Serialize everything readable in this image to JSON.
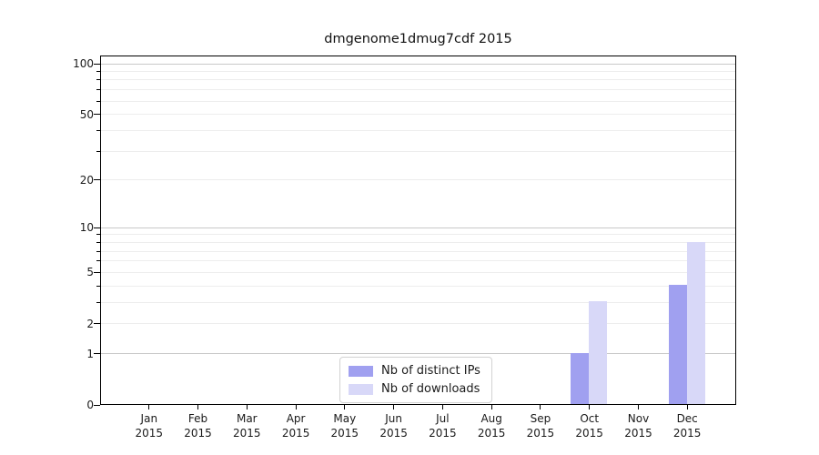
{
  "figure": {
    "title": "dmgenome1dmug7cdf 2015"
  },
  "chart_data": {
    "type": "bar",
    "title": "dmgenome1dmug7cdf 2015",
    "categories": [
      "Jan",
      "Feb",
      "Mar",
      "Apr",
      "May",
      "Jun",
      "Jul",
      "Aug",
      "Sep",
      "Oct",
      "Nov",
      "Dec"
    ],
    "category_year": "2015",
    "series": [
      {
        "name": "Nb of distinct IPs",
        "color": "#a0a0f0",
        "values": [
          0,
          0,
          0,
          0,
          0,
          0,
          0,
          0,
          0,
          1,
          0,
          4
        ]
      },
      {
        "name": "Nb of downloads",
        "color": "#d8d8f8",
        "values": [
          0,
          0,
          0,
          0,
          0,
          0,
          0,
          0,
          0,
          3,
          0,
          8
        ]
      }
    ],
    "xlabel": "",
    "ylabel": "",
    "yscale": "log1p",
    "ylim": [
      0,
      112
    ],
    "y_major_ticks": [
      0,
      1,
      2,
      5,
      10,
      20,
      50,
      100
    ],
    "y_minor_ticks": [
      3,
      4,
      6,
      7,
      8,
      9,
      30,
      40,
      60,
      70,
      80,
      90
    ],
    "grid_major_values": [
      1,
      10,
      100
    ],
    "grid": true,
    "legend_position": "lower center inside",
    "colors": {
      "grid_major": "#c9c9c9",
      "grid_minor": "#ededed",
      "spine": "#000000",
      "text": "#1a1a1a"
    }
  }
}
